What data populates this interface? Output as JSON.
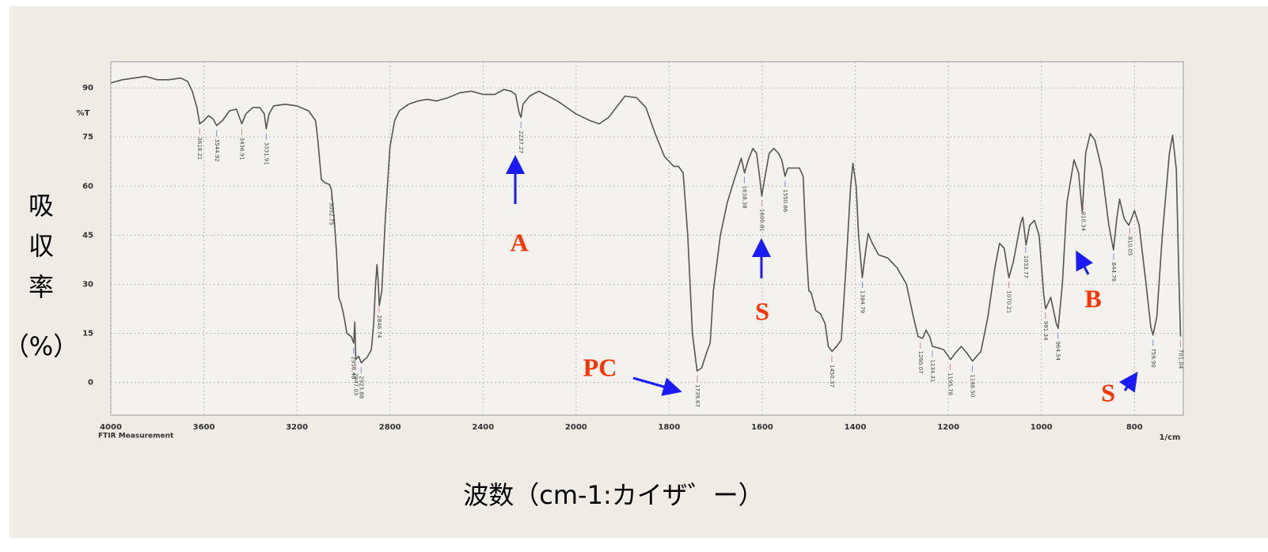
{
  "chart_data": {
    "type": "line",
    "y_label_lines": [
      "吸",
      "収",
      "率",
      "（%）"
    ],
    "x_label": "波数（cm-1:カイザ゛ー）",
    "y_unit_label": "%T",
    "x_unit_label": "1/cm",
    "footer_label": "FTIR Measurement",
    "xlim": [
      4000,
      695
    ],
    "x_scale_break": 2000,
    "x_scale_ratio": 2,
    "xticks": [
      4000,
      3600,
      3200,
      2800,
      2400,
      2000,
      1800,
      1600,
      1400,
      1200,
      1000,
      800
    ],
    "ylim": [
      -10,
      98
    ],
    "yticks": [
      0,
      15,
      30,
      45,
      60,
      75,
      90
    ],
    "grid": true,
    "series": [
      {
        "color": "#555555",
        "x": [
          4000,
          3950,
          3900,
          3850,
          3800,
          3750,
          3700,
          3670,
          3650,
          3630,
          3618,
          3600,
          3580,
          3560,
          3545,
          3520,
          3490,
          3460,
          3437,
          3420,
          3390,
          3360,
          3340,
          3332,
          3320,
          3300,
          3250,
          3200,
          3150,
          3120,
          3110,
          3095,
          3080,
          3060,
          3052,
          3040,
          3030,
          3020,
          3010,
          3000,
          2985,
          2966,
          2956,
          2951,
          2947,
          2935,
          2923,
          2910,
          2900,
          2880,
          2870,
          2862,
          2856,
          2850,
          2846,
          2835,
          2820,
          2800,
          2780,
          2760,
          2720,
          2680,
          2640,
          2600,
          2550,
          2500,
          2450,
          2400,
          2350,
          2310,
          2280,
          2260,
          2245,
          2237,
          2228,
          2200,
          2160,
          2120,
          2080,
          2040,
          2000,
          1970,
          1950,
          1930,
          1895,
          1870,
          1850,
          1830,
          1810,
          1790,
          1780,
          1770,
          1760,
          1750,
          1740,
          1730,
          1720,
          1712,
          1705,
          1690,
          1675,
          1660,
          1645,
          1638,
          1630,
          1620,
          1612,
          1605,
          1601,
          1595,
          1585,
          1575,
          1565,
          1558,
          1551,
          1545,
          1530,
          1520,
          1512,
          1505,
          1500,
          1495,
          1485,
          1475,
          1465,
          1458,
          1450,
          1440,
          1430,
          1420,
          1410,
          1405,
          1398,
          1393,
          1385,
          1378,
          1372,
          1365,
          1350,
          1330,
          1310,
          1290,
          1275,
          1265,
          1255,
          1248,
          1240,
          1234,
          1220,
          1210,
          1195,
          1185,
          1172,
          1160,
          1148,
          1130,
          1115,
          1100,
          1090,
          1080,
          1070,
          1060,
          1045,
          1040,
          1033,
          1025,
          1015,
          1005,
          995,
          991,
          980,
          968,
          964,
          955,
          945,
          930,
          920,
          912,
          905,
          895,
          885,
          870,
          855,
          845,
          838,
          832,
          822,
          812,
          800,
          790,
          775,
          765,
          760,
          752,
          740,
          725,
          718,
          710,
          705,
          701
        ],
        "values": [
          91.5,
          92.5,
          93,
          93.5,
          92.5,
          92.5,
          93,
          92,
          89,
          84,
          79,
          80,
          81.5,
          80.5,
          78.5,
          80,
          83,
          83.5,
          79,
          82,
          84,
          84,
          82,
          77.5,
          82,
          84.5,
          85,
          84.5,
          83,
          80,
          74,
          62,
          61,
          60.5,
          59,
          50,
          40,
          26,
          24,
          21,
          15,
          14,
          12,
          18.5,
          7,
          8,
          6,
          7,
          7.5,
          10,
          18,
          30,
          36,
          30,
          23.5,
          28,
          50,
          72,
          80,
          83,
          85,
          86,
          86.5,
          86,
          87,
          88.5,
          89,
          88,
          88,
          89.5,
          89,
          88,
          82.5,
          81,
          85,
          87.5,
          89,
          87.5,
          86,
          84,
          82,
          80,
          79,
          81,
          87.5,
          87,
          84,
          76,
          69,
          66,
          66,
          64,
          45,
          15,
          3.5,
          4.5,
          9,
          12,
          28,
          45,
          55,
          62,
          68.5,
          64,
          68,
          71.5,
          70,
          62,
          57,
          62,
          70,
          71.5,
          70,
          68,
          63,
          65.5,
          65.5,
          65.5,
          63,
          40,
          28,
          27.5,
          22,
          21,
          18,
          11,
          9.5,
          11,
          13,
          35,
          60,
          67,
          60,
          45,
          32,
          40,
          45.5,
          43,
          39,
          38,
          35,
          30,
          20,
          14,
          13.5,
          16,
          14,
          11,
          10.5,
          10,
          7,
          9,
          11,
          9,
          6.5,
          9.5,
          20,
          35,
          42.5,
          41,
          32,
          37,
          48.5,
          50.5,
          42,
          48,
          49.5,
          45,
          27,
          22.5,
          26,
          18,
          16.5,
          30,
          55,
          68,
          64,
          52,
          70,
          76,
          74,
          65,
          48,
          40.5,
          50,
          56,
          50,
          48,
          52.5,
          48,
          30,
          17,
          14.5,
          20,
          45,
          70,
          75.5,
          65,
          35,
          14
        ]
      }
    ],
    "peaks": [
      3618.21,
      3544.92,
      3436.91,
      3331.91,
      3052.75,
      2956.48,
      2947.03,
      2923.88,
      2846.74,
      2237.27,
      1739.67,
      1638.38,
      1600.81,
      1550.66,
      1450.37,
      1384.79,
      1260.07,
      1234.31,
      1195.78,
      {
        "value": 1148.5,
        "label": "1148.50"
      },
      1070.21,
      1033.77,
      991.34,
      964.54,
      910.34,
      844.76,
      810.05,
      {
        "value": 759.9,
        "label": "759.90"
      },
      701.04
    ],
    "annotation_color": "#ff3300",
    "arrow_color": "#1a1aff",
    "annotations": [
      "A",
      "S",
      "PC",
      "B",
      "S"
    ]
  }
}
